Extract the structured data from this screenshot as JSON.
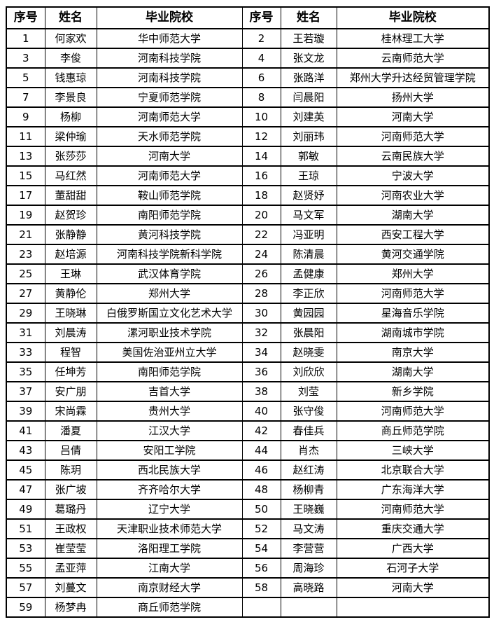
{
  "colors": {
    "background": "#ffffff",
    "border": "#000000",
    "text": "#000000"
  },
  "table": {
    "headers": [
      "序号",
      "姓名",
      "毕业院校"
    ],
    "left_rows": [
      [
        "1",
        "何家欢",
        "华中师范大学"
      ],
      [
        "3",
        "李俊",
        "河南科技学院"
      ],
      [
        "5",
        "钱惠琼",
        "河南科技学院"
      ],
      [
        "7",
        "李景良",
        "宁夏师范学院"
      ],
      [
        "9",
        "杨柳",
        "河南师范大学"
      ],
      [
        "11",
        "梁仲瑜",
        "天水师范学院"
      ],
      [
        "13",
        "张莎莎",
        "河南大学"
      ],
      [
        "15",
        "马红然",
        "河南师范大学"
      ],
      [
        "17",
        "董甜甜",
        "鞍山师范学院"
      ],
      [
        "19",
        "赵贺珍",
        "南阳师范学院"
      ],
      [
        "21",
        "张静静",
        "黄河科技学院"
      ],
      [
        "23",
        "赵培源",
        "河南科技学院新科学院"
      ],
      [
        "25",
        "王琳",
        "武汉体育学院"
      ],
      [
        "27",
        "黄静伦",
        "郑州大学"
      ],
      [
        "29",
        "王晓琳",
        "白俄罗斯国立文化艺术大学"
      ],
      [
        "31",
        "刘晨涛",
        "漯河职业技术学院"
      ],
      [
        "33",
        "程智",
        "美国佐治亚州立大学"
      ],
      [
        "35",
        "任坤芳",
        "南阳师范学院"
      ],
      [
        "37",
        "安广朋",
        "吉首大学"
      ],
      [
        "39",
        "宋尚霖",
        "贵州大学"
      ],
      [
        "41",
        "潘夏",
        "江汉大学"
      ],
      [
        "43",
        "吕倩",
        "安阳工学院"
      ],
      [
        "45",
        "陈玥",
        "西北民族大学"
      ],
      [
        "47",
        "张广坡",
        "齐齐哈尔大学"
      ],
      [
        "49",
        "葛璐丹",
        "辽宁大学"
      ],
      [
        "51",
        "王政权",
        "天津职业技术师范大学"
      ],
      [
        "53",
        "崔莹莹",
        "洛阳理工学院"
      ],
      [
        "55",
        "孟亚萍",
        "江南大学"
      ],
      [
        "57",
        "刘蔓文",
        "南京财经大学"
      ],
      [
        "59",
        "杨梦冉",
        "商丘师范学院"
      ]
    ],
    "right_rows": [
      [
        "2",
        "王若璇",
        "桂林理工大学"
      ],
      [
        "4",
        "张文龙",
        "云南师范大学"
      ],
      [
        "6",
        "张路洋",
        "郑州大学升达经贸管理学院"
      ],
      [
        "8",
        "闫晨阳",
        "扬州大学"
      ],
      [
        "10",
        "刘建英",
        "河南大学"
      ],
      [
        "12",
        "刘丽玮",
        "河南师范大学"
      ],
      [
        "14",
        "郭敏",
        "云南民族大学"
      ],
      [
        "16",
        "王琼",
        "宁波大学"
      ],
      [
        "18",
        "赵贤妤",
        "河南农业大学"
      ],
      [
        "20",
        "马文军",
        "湖南大学"
      ],
      [
        "22",
        "冯亚明",
        "西安工程大学"
      ],
      [
        "24",
        "陈清晨",
        "黄河交通学院"
      ],
      [
        "26",
        "孟健康",
        "郑州大学"
      ],
      [
        "28",
        "李正欣",
        "河南师范大学"
      ],
      [
        "30",
        "黄园园",
        "星海音乐学院"
      ],
      [
        "32",
        "张晨阳",
        "湖南城市学院"
      ],
      [
        "34",
        "赵晓雯",
        "南京大学"
      ],
      [
        "36",
        "刘欣欣",
        "湖南大学"
      ],
      [
        "38",
        "刘莹",
        "新乡学院"
      ],
      [
        "40",
        "张守俊",
        "河南师范大学"
      ],
      [
        "42",
        "春佳兵",
        "商丘师范学院"
      ],
      [
        "44",
        "肖杰",
        "三峡大学"
      ],
      [
        "46",
        "赵红涛",
        "北京联合大学"
      ],
      [
        "48",
        "杨柳青",
        "广东海洋大学"
      ],
      [
        "50",
        "王晓巍",
        "河南师范大学"
      ],
      [
        "52",
        "马文涛",
        "重庆交通大学"
      ],
      [
        "54",
        "李营营",
        "广西大学"
      ],
      [
        "56",
        "周海珍",
        "石河子大学"
      ],
      [
        "58",
        "高晓路",
        "河南大学"
      ],
      [
        "",
        "",
        ""
      ]
    ]
  }
}
